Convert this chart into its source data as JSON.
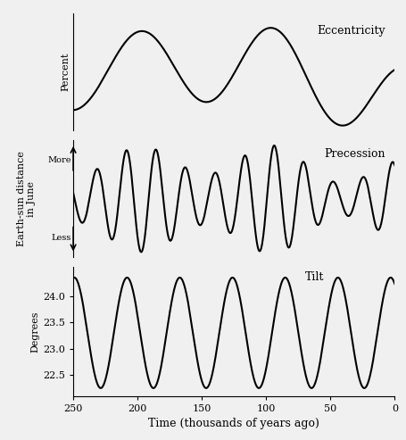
{
  "title_eccentricity": "Eccentricity",
  "title_precession": "Precession",
  "title_tilt": "Tilt",
  "xlabel": "Time (thousands of years ago)",
  "ylabel_eccentricity": "Percent",
  "ylabel_precession_main": "Earth-sun distance\nin June",
  "ylabel_tilt": "Degrees",
  "more_label": "More",
  "less_label": "Less",
  "tilt_yticks": [
    22.5,
    23.0,
    23.5,
    24.0
  ],
  "tilt_ylim": [
    22.1,
    24.55
  ],
  "bg_color": "#f0f0f0",
  "line_color": "black",
  "line_width": 1.5,
  "font_family": "DejaVu Serif",
  "font_size_label": 8,
  "font_size_title": 9,
  "font_size_tick": 8
}
